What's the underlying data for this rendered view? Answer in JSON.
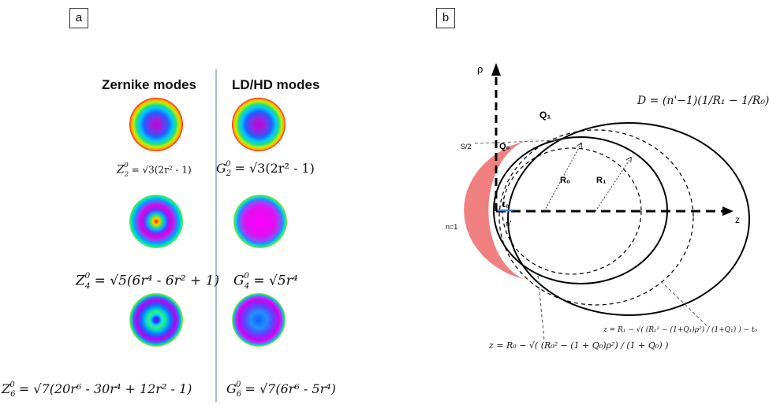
{
  "panel_a": {
    "label": "a",
    "heading_left": "Zernike modes",
    "heading_right": "LD/HD modes",
    "formulas": {
      "z2_sym": "Z",
      "z2_sub": "2",
      "z2_sup": "0",
      "z2_rhs": " = √3(2r",
      "z2_tail": "² - 1)",
      "g2_sym": "G",
      "g2_sub": "2",
      "g2_sup": "0",
      "g2_rhs": " = √3(2r",
      "g2_tail": "² - 1)",
      "z4_sym": "Z",
      "z4_sub": "4",
      "z4_sup": "0",
      "z4_rhs": " = √5(6r⁴ - 6r² + 1)",
      "g4_sym": "G",
      "g4_sub": "4",
      "g4_sup": "0",
      "g4_rhs": " = √5r⁴",
      "z6_sym": "Z",
      "z6_sub": "6",
      "z6_sup": "0",
      "z6_rhs": " = √7(20r⁶ - 30r⁴ + 12r² - 1)",
      "g6_sym": "G",
      "g6_sub": "6",
      "g6_sup": "0",
      "g6_rhs": " = √7(6r⁶ - 5r⁴)"
    },
    "colors": {
      "divider": "#8aa6c8"
    }
  },
  "panel_b": {
    "label": "b",
    "axis_rho": "ρ",
    "axis_z": "z",
    "s_half": "S/2",
    "n_label": "n=1",
    "n_prime": "n'",
    "q1": "Q₁",
    "q0": "Q₀",
    "r0": "R₀",
    "r1": "R₁",
    "t0": "t₀",
    "d_formula": "D = (n'−1)(1/R₁ − 1/R₀)",
    "sag0": "z = R₀ − √( (R₀² − (1 + Q₀)ρ²) / (1 + Q₀) )",
    "sag1": "z = R₁ − √( (R₁² − (1+Q₁)ρ²) / (1+Q₁) ) − t₀",
    "colors": {
      "lens": "#f08080",
      "t0_line": "#4a7fd0"
    }
  }
}
